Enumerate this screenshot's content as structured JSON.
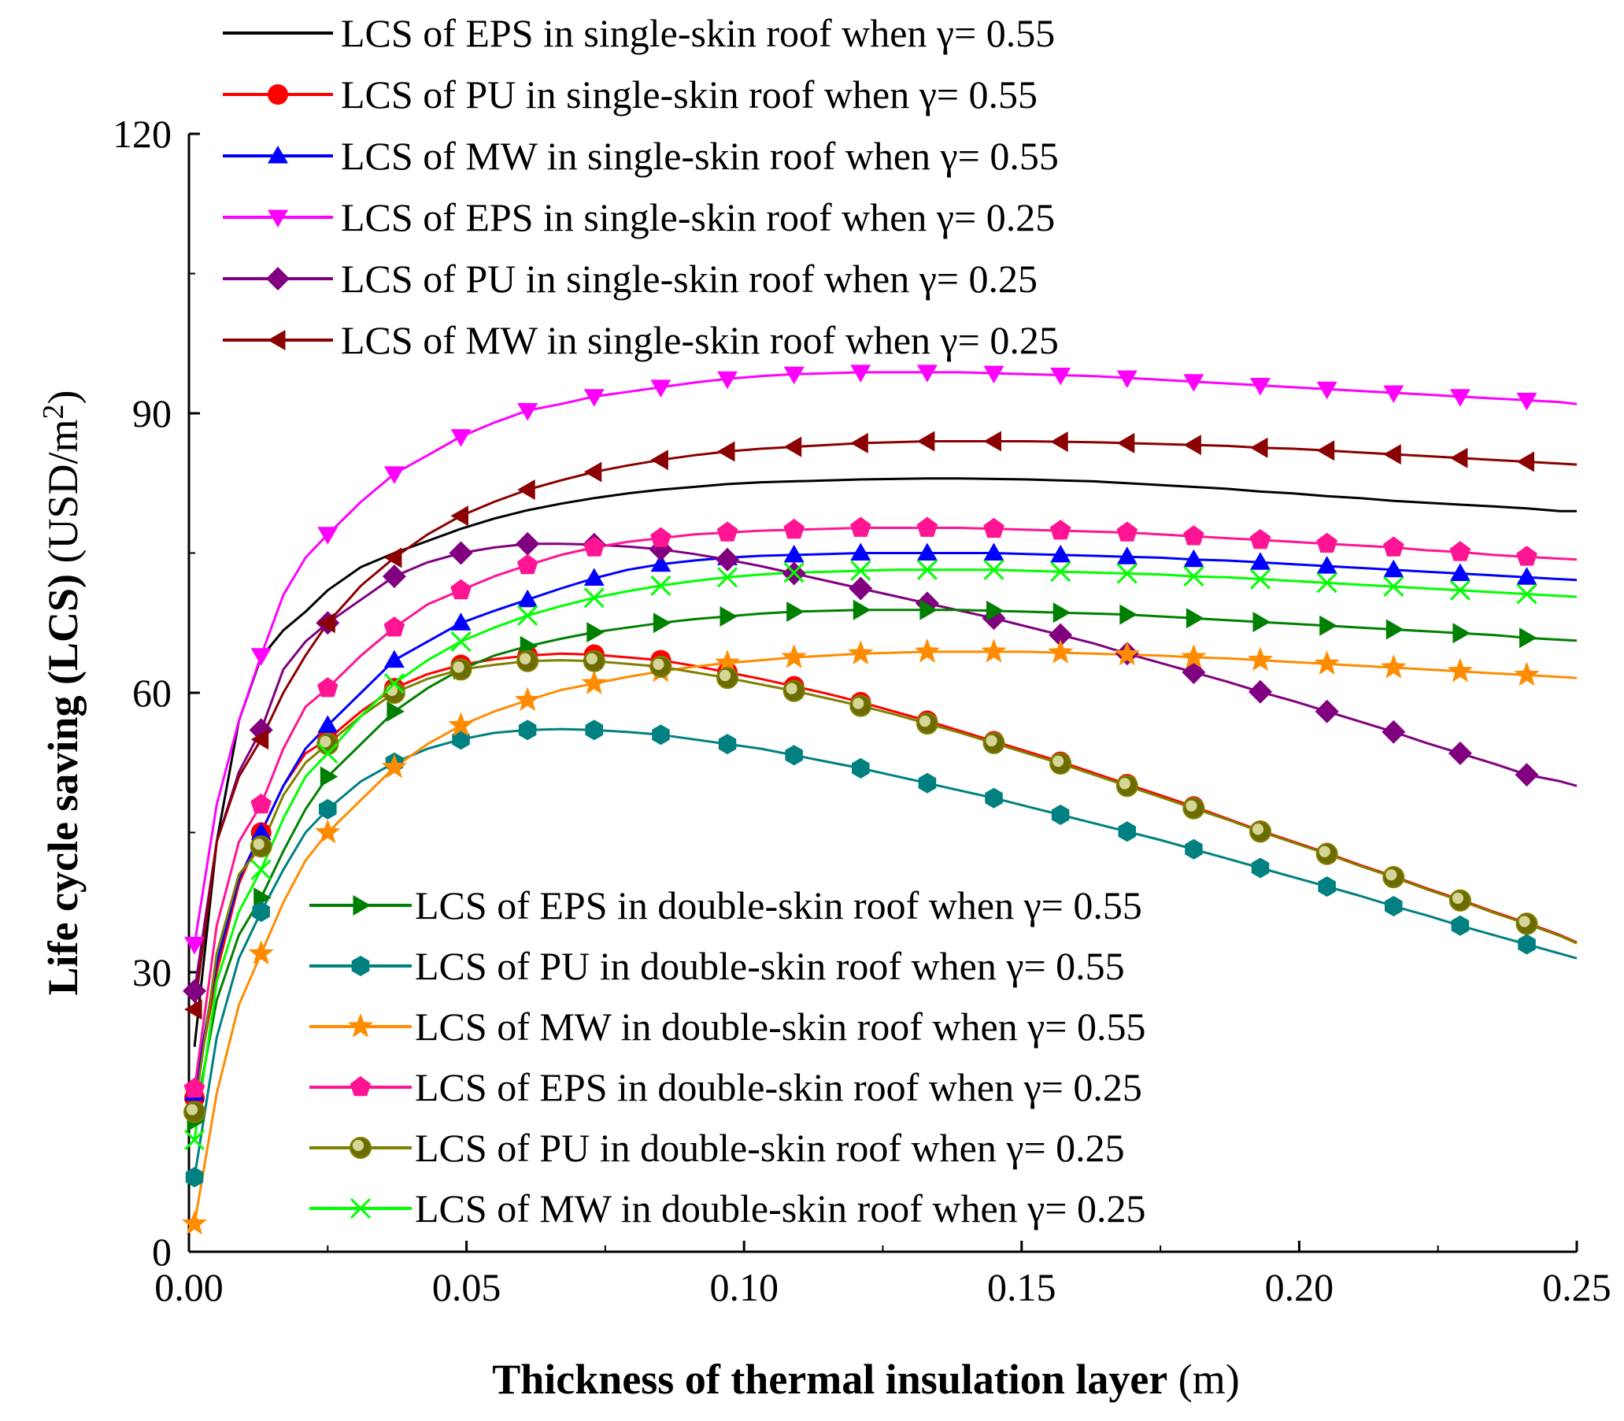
{
  "chart_data": {
    "type": "line",
    "title": "",
    "xlabel_bold": "Thickness of thermal insulation layer",
    "xlabel_unit": "(m)",
    "ylabel_bold": "Life cycle saving (LCS)",
    "ylabel_unit": "(USD/m",
    "ylabel_sup": "2",
    "ylabel_close": ")",
    "xlim": [
      0,
      0.25
    ],
    "ylim": [
      0,
      120
    ],
    "xticks": [
      0,
      0.05,
      0.1,
      0.15,
      0.2,
      0.25
    ],
    "xtick_labels": [
      "0.00",
      "0.05",
      "0.10",
      "0.15",
      "0.20",
      "0.25"
    ],
    "yticks": [
      0,
      30,
      60,
      90,
      120
    ],
    "ytick_labels": [
      "0",
      "30",
      "60",
      "90",
      "120"
    ],
    "x": [
      0.001,
      0.005,
      0.009,
      0.013,
      0.017,
      0.021,
      0.025,
      0.031,
      0.037,
      0.043,
      0.049,
      0.055,
      0.061,
      0.067,
      0.073,
      0.079,
      0.085,
      0.091,
      0.097,
      0.103,
      0.109,
      0.115,
      0.121,
      0.127,
      0.133,
      0.139,
      0.145,
      0.151,
      0.157,
      0.163,
      0.169,
      0.175,
      0.181,
      0.187,
      0.193,
      0.199,
      0.205,
      0.211,
      0.217,
      0.223,
      0.229,
      0.235,
      0.241,
      0.247,
      0.25
    ],
    "marker_x": [
      0.001,
      0.013,
      0.025,
      0.037,
      0.049,
      0.061,
      0.073,
      0.085,
      0.097,
      0.109,
      0.121,
      0.133,
      0.145,
      0.157,
      0.169,
      0.181,
      0.193,
      0.205,
      0.217,
      0.229,
      0.241
    ],
    "series": [
      {
        "name": "LCS of EPS in single-skin roof when γ= 0.55",
        "color": "#000000",
        "marker": "none",
        "values": [
          22.0,
          44.0,
          57.0,
          63.8,
          66.7,
          68.7,
          71.0,
          73.5,
          75.0,
          76.3,
          77.6,
          78.7,
          79.6,
          80.3,
          80.9,
          81.4,
          81.8,
          82.1,
          82.4,
          82.6,
          82.7,
          82.8,
          82.9,
          82.95,
          83.0,
          83.0,
          82.95,
          82.9,
          82.8,
          82.7,
          82.5,
          82.3,
          82.1,
          81.9,
          81.6,
          81.4,
          81.1,
          80.9,
          80.6,
          80.4,
          80.2,
          80.0,
          79.8,
          79.5,
          79.5
        ]
      },
      {
        "name": "LCS of PU in single-skin roof when γ= 0.55",
        "color": "#ff0000",
        "marker": "circle",
        "values": [
          16.5,
          30.0,
          39.5,
          45.0,
          50.0,
          53.5,
          55.0,
          58.0,
          60.5,
          62.0,
          63.0,
          63.6,
          64.0,
          64.2,
          64.1,
          63.8,
          63.5,
          62.9,
          62.2,
          61.5,
          60.7,
          59.9,
          59.0,
          58.0,
          57.0,
          55.9,
          54.8,
          53.7,
          52.6,
          51.4,
          50.2,
          49.0,
          47.8,
          46.5,
          45.2,
          44.0,
          42.8,
          41.5,
          40.3,
          39.0,
          37.8,
          36.5,
          35.3,
          34.0,
          33.2
        ]
      },
      {
        "name": "LCS of MW in single-skin roof when γ= 0.55",
        "color": "#0000ff",
        "marker": "triangle-up",
        "values": [
          17.0,
          31.0,
          40.0,
          45.0,
          50.0,
          54.0,
          56.5,
          60.0,
          63.5,
          65.5,
          67.5,
          68.8,
          70.0,
          71.2,
          72.3,
          73.2,
          73.8,
          74.2,
          74.5,
          74.7,
          74.8,
          74.9,
          75.0,
          75.0,
          75.0,
          75.0,
          75.0,
          74.9,
          74.8,
          74.7,
          74.6,
          74.5,
          74.3,
          74.2,
          74.0,
          73.8,
          73.6,
          73.4,
          73.2,
          73.0,
          72.8,
          72.6,
          72.4,
          72.2,
          72.1
        ]
      },
      {
        "name": "LCS of EPS in single-skin roof when γ= 0.25",
        "color": "#ff00ff",
        "marker": "triangle-down",
        "values": [
          33.0,
          48.0,
          57.0,
          64.0,
          70.5,
          74.5,
          77.0,
          80.5,
          83.5,
          85.5,
          87.5,
          89.0,
          90.3,
          91.0,
          91.8,
          92.3,
          92.8,
          93.3,
          93.7,
          94.0,
          94.2,
          94.3,
          94.4,
          94.4,
          94.4,
          94.4,
          94.3,
          94.2,
          94.1,
          94.0,
          93.8,
          93.6,
          93.4,
          93.2,
          93.0,
          92.8,
          92.6,
          92.4,
          92.2,
          92.0,
          91.8,
          91.6,
          91.4,
          91.2,
          91.0
        ]
      },
      {
        "name": "LCS of PU in single-skin roof when γ= 0.25",
        "color": "#800080",
        "marker": "diamond",
        "values": [
          28.0,
          44.0,
          51.5,
          56.0,
          62.5,
          65.5,
          67.5,
          70.0,
          72.5,
          74.0,
          75.0,
          75.6,
          76.0,
          76.0,
          75.9,
          75.7,
          75.4,
          74.9,
          74.3,
          73.6,
          72.8,
          72.0,
          71.2,
          70.4,
          69.6,
          68.8,
          68.0,
          67.1,
          66.2,
          65.3,
          64.2,
          63.2,
          62.2,
          61.2,
          60.1,
          59.1,
          58.0,
          56.9,
          55.8,
          54.6,
          53.5,
          52.4,
          51.2,
          50.5,
          50.0
        ]
      },
      {
        "name": "LCS of MW in single-skin roof when γ= 0.25",
        "color": "#8b0000",
        "marker": "triangle-left",
        "values": [
          26.0,
          44.0,
          51.0,
          55.0,
          60.0,
          64.0,
          67.5,
          71.5,
          74.5,
          77.0,
          79.0,
          80.5,
          81.8,
          82.8,
          83.7,
          84.4,
          85.0,
          85.5,
          85.9,
          86.2,
          86.4,
          86.6,
          86.8,
          86.9,
          87.0,
          87.0,
          87.0,
          87.0,
          86.95,
          86.9,
          86.8,
          86.7,
          86.6,
          86.5,
          86.3,
          86.2,
          86.0,
          85.8,
          85.6,
          85.4,
          85.2,
          85.0,
          84.8,
          84.6,
          84.5
        ]
      },
      {
        "name": "LCS of EPS in double-skin roof when γ= 0.55",
        "color": "#008000",
        "marker": "triangle-right",
        "values": [
          14.0,
          27.0,
          34.0,
          38.0,
          43.0,
          47.5,
          51.0,
          54.5,
          58.0,
          60.5,
          62.5,
          64.0,
          65.0,
          65.8,
          66.5,
          67.0,
          67.5,
          67.9,
          68.2,
          68.5,
          68.7,
          68.8,
          68.9,
          68.9,
          68.9,
          68.9,
          68.8,
          68.7,
          68.6,
          68.5,
          68.4,
          68.2,
          68.0,
          67.8,
          67.6,
          67.4,
          67.2,
          67.0,
          66.8,
          66.6,
          66.4,
          66.2,
          65.9,
          65.7,
          65.6
        ]
      },
      {
        "name": "LCS of PU in double-skin roof when γ= 0.55",
        "color": "#008080",
        "marker": "hexagon",
        "values": [
          8.0,
          23.0,
          31.5,
          36.5,
          41.0,
          45.0,
          47.5,
          50.5,
          52.5,
          54.0,
          55.0,
          55.7,
          56.0,
          56.1,
          56.0,
          55.8,
          55.5,
          55.0,
          54.5,
          54.0,
          53.3,
          52.6,
          51.9,
          51.1,
          50.3,
          49.5,
          48.7,
          47.8,
          46.9,
          46.0,
          45.1,
          44.2,
          43.2,
          42.2,
          41.2,
          40.2,
          39.2,
          38.2,
          37.1,
          36.1,
          35.0,
          34.0,
          33.0,
          32.0,
          31.5
        ]
      },
      {
        "name": "LCS of MW in double-skin roof when γ= 0.55",
        "color": "#ff8c00",
        "marker": "star",
        "values": [
          3.0,
          17.0,
          26.5,
          32.0,
          37.5,
          42.0,
          45.0,
          48.5,
          52.0,
          54.5,
          56.5,
          58.0,
          59.2,
          60.3,
          61.0,
          61.7,
          62.3,
          62.8,
          63.2,
          63.5,
          63.8,
          64.0,
          64.2,
          64.3,
          64.4,
          64.4,
          64.4,
          64.4,
          64.3,
          64.2,
          64.1,
          64.0,
          63.8,
          63.7,
          63.5,
          63.3,
          63.1,
          62.9,
          62.7,
          62.5,
          62.3,
          62.1,
          61.9,
          61.7,
          61.6
        ]
      },
      {
        "name": "LCS of EPS in double-skin roof when γ= 0.25",
        "color": "#ff1493",
        "marker": "pentagon",
        "values": [
          17.5,
          35.0,
          44.0,
          48.0,
          54.0,
          58.5,
          60.5,
          64.0,
          67.0,
          69.5,
          71.0,
          72.5,
          73.7,
          74.8,
          75.6,
          76.2,
          76.6,
          77.0,
          77.2,
          77.4,
          77.5,
          77.6,
          77.7,
          77.7,
          77.7,
          77.7,
          77.6,
          77.5,
          77.4,
          77.3,
          77.2,
          77.0,
          76.8,
          76.6,
          76.4,
          76.2,
          76.0,
          75.8,
          75.6,
          75.3,
          75.1,
          74.8,
          74.6,
          74.4,
          74.3
        ]
      },
      {
        "name": "LCS of PU in double-skin roof when γ= 0.25",
        "color": "#808000",
        "marker": "sphere",
        "values": [
          15.0,
          32.0,
          40.5,
          43.5,
          49.0,
          52.5,
          54.5,
          57.5,
          60.0,
          61.5,
          62.5,
          63.0,
          63.4,
          63.5,
          63.4,
          63.1,
          62.8,
          62.2,
          61.6,
          60.9,
          60.2,
          59.4,
          58.6,
          57.7,
          56.7,
          55.7,
          54.6,
          53.5,
          52.4,
          51.2,
          50.0,
          48.8,
          47.6,
          46.4,
          45.1,
          43.9,
          42.7,
          41.4,
          40.2,
          38.9,
          37.7,
          36.4,
          35.2,
          33.9,
          33.1
        ]
      },
      {
        "name": "LCS of MW in double-skin roof when γ= 0.25",
        "color": "#00ff00",
        "marker": "x",
        "values": [
          12.0,
          29.0,
          36.5,
          41.0,
          46.5,
          51.0,
          53.5,
          57.5,
          61.0,
          63.5,
          65.5,
          67.0,
          68.3,
          69.3,
          70.2,
          70.9,
          71.5,
          72.0,
          72.4,
          72.7,
          72.9,
          73.0,
          73.1,
          73.2,
          73.2,
          73.2,
          73.2,
          73.1,
          73.0,
          72.9,
          72.8,
          72.7,
          72.5,
          72.4,
          72.2,
          72.0,
          71.8,
          71.6,
          71.4,
          71.2,
          71.0,
          70.8,
          70.6,
          70.4,
          70.3
        ]
      }
    ],
    "legend_groups": [
      {
        "position": "top-left",
        "items": [
          0,
          1,
          2,
          3,
          4,
          5
        ]
      },
      {
        "position": "bottom-center",
        "items": [
          6,
          7,
          8,
          9,
          10,
          11
        ]
      }
    ]
  }
}
